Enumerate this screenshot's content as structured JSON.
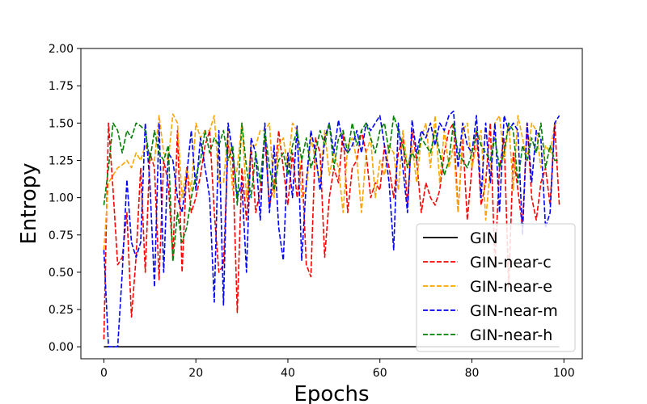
{
  "chart_data": {
    "type": "line",
    "title": "",
    "xlabel": "Epochs",
    "ylabel": "Entropy",
    "xlim": [
      -5,
      104
    ],
    "ylim": [
      -0.08,
      2.0
    ],
    "xticks": [
      0,
      20,
      40,
      60,
      80,
      100
    ],
    "yticks": [
      0.0,
      0.25,
      0.5,
      0.75,
      1.0,
      1.25,
      1.5,
      1.75,
      2.0
    ],
    "ytick_labels": [
      "0.00",
      "0.25",
      "0.50",
      "0.75",
      "1.00",
      "1.25",
      "1.50",
      "1.75",
      "2.00"
    ],
    "legend_position": "bottom-right",
    "series": [
      {
        "name": "GIN",
        "color": "#000000",
        "dash": "solid",
        "values": [
          0,
          0,
          0,
          0,
          0,
          0,
          0,
          0,
          0,
          0,
          0,
          0,
          0,
          0,
          0,
          0,
          0,
          0,
          0,
          0,
          0,
          0,
          0,
          0,
          0,
          0,
          0,
          0,
          0,
          0,
          0,
          0,
          0,
          0,
          0,
          0,
          0,
          0,
          0,
          0,
          0,
          0,
          0,
          0,
          0,
          0,
          0,
          0,
          0,
          0,
          0,
          0,
          0,
          0,
          0,
          0,
          0,
          0,
          0,
          0,
          0,
          0,
          0,
          0,
          0,
          0,
          0,
          0,
          0,
          0,
          0,
          0,
          0,
          0,
          0,
          0,
          0,
          0,
          0,
          0,
          0,
          0,
          0,
          0,
          0,
          0,
          0,
          0,
          0,
          0,
          0,
          0,
          0,
          0,
          0,
          0,
          0,
          0,
          0,
          0
        ]
      },
      {
        "name": "GIN-near-c",
        "color": "#ff0000",
        "dash": "dashed",
        "values": [
          0.05,
          1.5,
          1.05,
          0.55,
          0.6,
          0.9,
          0.2,
          0.6,
          1.2,
          0.5,
          1.3,
          1.2,
          0.45,
          1.25,
          1.1,
          0.6,
          1.45,
          0.5,
          1.2,
          0.9,
          1.0,
          1.15,
          1.35,
          1.45,
          0.9,
          0.5,
          0.55,
          1.35,
          1.25,
          0.23,
          1.2,
          0.85,
          1.35,
          0.9,
          1.05,
          1.4,
          0.95,
          1.1,
          1.45,
          1.2,
          0.95,
          1.3,
          1.0,
          1.25,
          0.55,
          0.47,
          1.4,
          1.3,
          0.6,
          1.0,
          1.2,
          1.1,
          1.45,
          0.9,
          1.2,
          1.25,
          1.45,
          1.3,
          1.0,
          1.1,
          1.05,
          1.35,
          1.2,
          1.0,
          1.3,
          1.4,
          0.95,
          1.45,
          1.25,
          0.9,
          1.1,
          1.0,
          0.95,
          1.05,
          1.3,
          1.45,
          1.5,
          0.9,
          1.4,
          0.85,
          1.2,
          1.45,
          0.95,
          1.1,
          1.5,
          0.55,
          1.2,
          1.4,
          0.4,
          1.3,
          1.05,
          0.8,
          1.5,
          1.0,
          0.85,
          1.1,
          1.2,
          0.95,
          1.5,
          0.95
        ]
      },
      {
        "name": "GIN-near-e",
        "color": "#ffa500",
        "dash": "dashed",
        "values": [
          0.65,
          1.1,
          1.15,
          1.2,
          1.22,
          1.25,
          1.2,
          1.3,
          1.25,
          1.35,
          1.25,
          1.25,
          1.55,
          1.3,
          1.25,
          1.56,
          1.5,
          1.0,
          1.2,
          1.05,
          1.5,
          1.4,
          1.45,
          1.45,
          1.55,
          1.1,
          1.1,
          1.45,
          1.05,
          1.2,
          1.5,
          1.0,
          1.35,
          1.35,
          1.45,
          1.45,
          1.5,
          1.0,
          1.35,
          1.4,
          1.2,
          1.5,
          1.45,
          1.0,
          1.05,
          1.4,
          1.25,
          1.1,
          1.45,
          1.15,
          1.3,
          1.2,
          0.9,
          1.35,
          1.4,
          1.25,
          0.9,
          1.3,
          1.4,
          1.0,
          1.25,
          1.15,
          1.35,
          1.3,
          1.05,
          1.45,
          1.2,
          1.35,
          1.1,
          1.4,
          1.5,
          1.2,
          1.55,
          1.1,
          1.45,
          1.2,
          1.35,
          0.9,
          1.45,
          1.5,
          1.2,
          1.35,
          1.45,
          0.85,
          1.2,
          1.5,
          1.55,
          1.25,
          1.5,
          1.05,
          1.55,
          1.4,
          1.25,
          1.5,
          1.45,
          1.2,
          1.35,
          1.3,
          1.5,
          1.5
        ]
      },
      {
        "name": "GIN-near-m",
        "color": "#0000ff",
        "dash": "dashed",
        "values": [
          0.65,
          0.0,
          0.0,
          0.0,
          0.5,
          1.12,
          0.7,
          0.6,
          0.7,
          1.5,
          1.1,
          0.4,
          1.5,
          0.5,
          1.3,
          1.25,
          1.0,
          0.9,
          1.15,
          1.45,
          1.05,
          1.4,
          1.2,
          1.0,
          0.3,
          1.45,
          0.28,
          1.5,
          1.3,
          1.0,
          1.1,
          0.5,
          1.4,
          1.3,
          0.85,
          1.5,
          0.9,
          1.35,
          0.8,
          0.58,
          1.3,
          1.0,
          1.48,
          0.58,
          1.1,
          1.45,
          1.3,
          1.05,
          1.4,
          1.5,
          1.3,
          1.52,
          1.35,
          1.3,
          1.35,
          1.45,
          1.3,
          1.5,
          1.45,
          1.5,
          1.55,
          1.35,
          1.1,
          0.65,
          1.5,
          1.2,
          0.9,
          1.52,
          1.3,
          1.45,
          1.4,
          1.5,
          1.35,
          1.5,
          1.45,
          1.55,
          1.58,
          1.2,
          1.5,
          1.35,
          1.3,
          1.55,
          1.0,
          1.5,
          1.1,
          1.5,
          0.9,
          1.55,
          1.45,
          1.5,
          1.45,
          0.75,
          1.5,
          1.1,
          1.45,
          1.4,
          0.8,
          0.9,
          1.5,
          1.55
        ]
      },
      {
        "name": "GIN-near-h",
        "color": "#008000",
        "dash": "dashed",
        "values": [
          0.95,
          1.2,
          1.5,
          1.45,
          1.3,
          1.45,
          1.4,
          1.5,
          1.48,
          1.45,
          1.25,
          1.45,
          1.3,
          1.25,
          1.35,
          0.57,
          0.9,
          0.7,
          0.8,
          1.0,
          1.15,
          1.25,
          1.45,
          1.3,
          1.4,
          1.35,
          1.45,
          1.25,
          1.35,
          0.95,
          1.5,
          1.2,
          1.0,
          1.3,
          1.1,
          1.45,
          1.2,
          1.05,
          1.25,
          1.3,
          1.15,
          1.35,
          1.45,
          1.25,
          1.4,
          1.2,
          1.3,
          1.45,
          1.35,
          1.5,
          1.2,
          1.4,
          1.45,
          1.3,
          1.5,
          1.35,
          1.45,
          1.5,
          1.4,
          1.3,
          1.45,
          1.5,
          1.3,
          1.55,
          1.45,
          1.35,
          1.2,
          1.3,
          1.25,
          1.4,
          1.35,
          1.3,
          1.45,
          1.3,
          1.15,
          1.25,
          1.5,
          1.3,
          1.25,
          1.2,
          1.3,
          1.45,
          1.35,
          1.3,
          1.25,
          1.4,
          1.2,
          1.3,
          1.5,
          1.45,
          1.1,
          1.35,
          1.25,
          1.4,
          1.3,
          1.5,
          1.2,
          1.35,
          1.25,
          1.25
        ]
      }
    ]
  }
}
